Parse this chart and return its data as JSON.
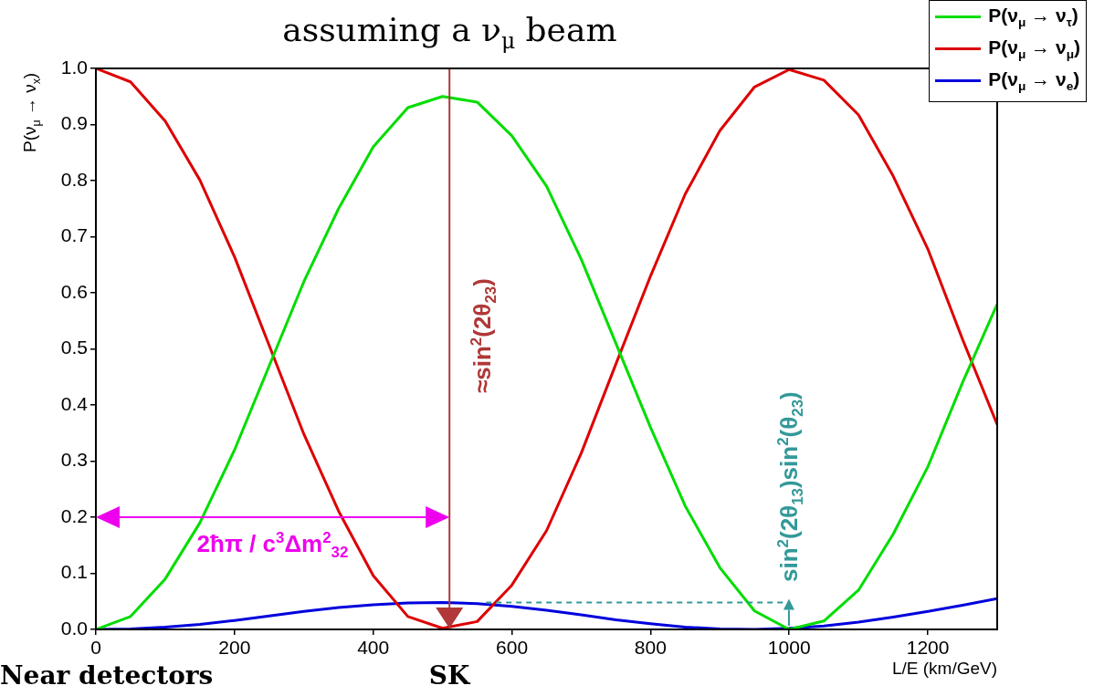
{
  "chart_data": {
    "type": "line",
    "title": "assuming a ν$_{μ}$ beam",
    "xlabel": "L/E (km/GeV)",
    "ylabel": "P(ν$_{μ}$ → ν$_{x}$)",
    "x": [
      0,
      50,
      100,
      150,
      200,
      250,
      300,
      350,
      400,
      450,
      500,
      550,
      600,
      650,
      700,
      750,
      800,
      850,
      900,
      950,
      1000,
      1050,
      1100,
      1150,
      1200,
      1250,
      1300
    ],
    "series": [
      {
        "name": "P(ν$_{μ}$ → ν$_{τ}$)",
        "color": "#00dd00",
        "values": [
          0,
          0.023,
          0.09,
          0.19,
          0.32,
          0.47,
          0.62,
          0.75,
          0.86,
          0.93,
          0.95,
          0.94,
          0.88,
          0.79,
          0.66,
          0.51,
          0.36,
          0.22,
          0.11,
          0.033,
          0,
          0.015,
          0.07,
          0.17,
          0.29,
          0.44,
          0.58
        ]
      },
      {
        "name": "P(ν$_{μ}$ → ν$_{μ}$)",
        "color": "#dd0000",
        "values": [
          1,
          0.976,
          0.906,
          0.801,
          0.664,
          0.506,
          0.348,
          0.211,
          0.096,
          0.023,
          0.002,
          0.014,
          0.079,
          0.176,
          0.314,
          0.473,
          0.63,
          0.776,
          0.889,
          0.967,
          0.998,
          0.979,
          0.917,
          0.808,
          0.678,
          0.517,
          0.365
        ]
      },
      {
        "name": "P(ν$_{μ}$ → ν$_{e}$)",
        "color": "#0000dd",
        "values": [
          0,
          0.001,
          0.004,
          0.009,
          0.016,
          0.024,
          0.032,
          0.039,
          0.044,
          0.047,
          0.048,
          0.046,
          0.041,
          0.034,
          0.026,
          0.017,
          0.01,
          0.004,
          0.001,
          0,
          0.002,
          0.006,
          0.013,
          0.022,
          0.032,
          0.043,
          0.055
        ]
      }
    ],
    "xlim": [
      0,
      1300
    ],
    "xticks": [
      0,
      200,
      400,
      600,
      800,
      1000,
      1200
    ],
    "ylim": [
      0,
      1
    ],
    "yticks": [
      {
        "value": 0,
        "label": "0.0"
      },
      {
        "value": 0.1,
        "label": "0.1"
      },
      {
        "value": 0.2,
        "label": "0.2"
      },
      {
        "value": 0.3,
        "label": "0.3"
      },
      {
        "value": 0.4,
        "label": "0.4"
      },
      {
        "value": 0.5,
        "label": "0.5"
      },
      {
        "value": 0.6,
        "label": "0.6"
      },
      {
        "value": 0.7,
        "label": "0.7"
      },
      {
        "value": 0.8,
        "label": "0.8"
      },
      {
        "value": 0.9,
        "label": "0.9"
      },
      {
        "value": 1,
        "label": "1.0"
      }
    ],
    "ref_lines": [
      {
        "axis": "x",
        "value": 510,
        "label": "≈sin$^{2}$(2θ$_{23}$)",
        "color": "#b03838"
      }
    ],
    "annotations": [
      "2ħπ / c$^{3}$Δm$^{2}$$_{32}$",
      "sin$^{2}$(2θ$_{13}$)sin$^{2}$(θ$_{23}$)",
      "Near detectors",
      "SK"
    ],
    "grid": false,
    "legend": "top right",
    "marker": "none",
    "line_style": "solid"
  }
}
